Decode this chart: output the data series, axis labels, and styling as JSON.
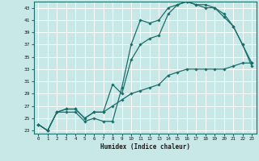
{
  "xlabel": "Humidex (Indice chaleur)",
  "ylabel": "",
  "bg_color": "#c8e8e8",
  "grid_color": "#ffffff",
  "line_color": "#1a6e6a",
  "xlim": [
    -0.5,
    23.5
  ],
  "ylim": [
    22.5,
    44
  ],
  "xticks": [
    0,
    1,
    2,
    3,
    4,
    5,
    6,
    7,
    8,
    9,
    10,
    11,
    12,
    13,
    14,
    15,
    16,
    17,
    18,
    19,
    20,
    21,
    22,
    23
  ],
  "yticks": [
    23,
    25,
    27,
    29,
    31,
    33,
    35,
    37,
    39,
    41,
    43
  ],
  "line1_x": [
    0,
    1,
    2,
    3,
    4,
    5,
    6,
    7,
    8,
    9,
    10,
    11,
    12,
    13,
    14,
    15,
    16,
    17,
    18,
    19,
    20,
    21,
    22,
    23
  ],
  "line1_y": [
    24,
    23,
    26,
    26,
    26,
    24.5,
    25,
    24.5,
    24.5,
    30,
    37,
    41,
    40.5,
    41,
    43,
    43.5,
    44,
    43.5,
    43,
    43,
    41.5,
    40,
    37,
    33.5
  ],
  "line2_x": [
    0,
    1,
    2,
    3,
    4,
    5,
    6,
    7,
    8,
    9,
    10,
    11,
    12,
    13,
    14,
    15,
    16,
    17,
    18,
    19,
    20,
    21,
    22,
    23
  ],
  "line2_y": [
    24,
    23,
    26,
    26.5,
    26.5,
    25,
    26,
    26,
    30.5,
    29,
    34.5,
    37,
    38,
    38.5,
    42,
    43.5,
    44,
    43.5,
    43.5,
    43,
    42,
    40,
    37,
    34
  ],
  "line3_x": [
    0,
    1,
    2,
    3,
    4,
    5,
    6,
    7,
    8,
    9,
    10,
    11,
    12,
    13,
    14,
    15,
    16,
    17,
    18,
    19,
    20,
    21,
    22,
    23
  ],
  "line3_y": [
    24,
    23,
    26,
    26.5,
    26.5,
    25,
    26,
    26,
    27,
    28,
    29,
    29.5,
    30,
    30.5,
    32,
    32.5,
    33,
    33,
    33,
    33,
    33,
    33.5,
    34,
    34
  ]
}
